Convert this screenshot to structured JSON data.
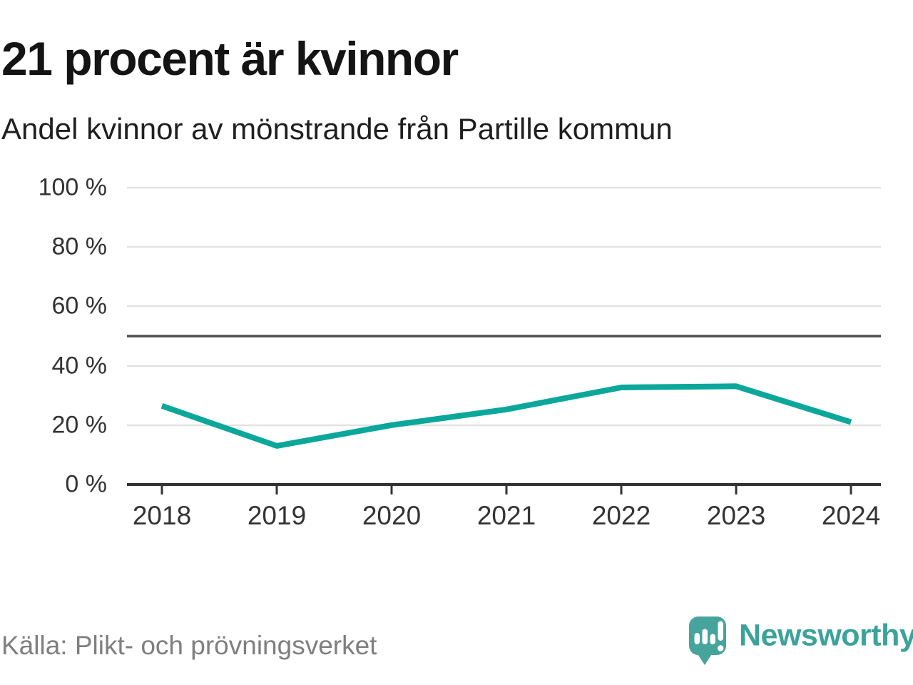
{
  "header": {
    "title": "21 procent är kvinnor",
    "subtitle": "Andel kvinnor av mönstrande från Partille kommun"
  },
  "chart_data": {
    "type": "line",
    "title": "21 procent är kvinnor",
    "subtitle": "Andel kvinnor av mönstrande från Partille kommun",
    "x": [
      "2018",
      "2019",
      "2020",
      "2021",
      "2022",
      "2023",
      "2024"
    ],
    "series": [
      {
        "name": "Andel kvinnor",
        "color": "#0ba79b",
        "values": [
          26.5,
          13,
          20,
          25.3,
          32.7,
          33.1,
          21
        ]
      }
    ],
    "unit": "%",
    "ylim": [
      0,
      100
    ],
    "ytick_labels": [
      "100 %",
      "80 %",
      "60 %",
      "40 %",
      "20 %",
      "0 %"
    ],
    "ytick_values": [
      100,
      80,
      60,
      40,
      20,
      0
    ],
    "reference_line": {
      "value": 50,
      "color": "#4d4d4d"
    },
    "grid": "horizontal",
    "legend": "none",
    "xlabel": "",
    "ylabel": ""
  },
  "footer": {
    "source": "Källa: Plikt- och prövningsverket",
    "brand_name": "Newsworthy"
  },
  "colors": {
    "line": "#0ba79b",
    "gridline": "#e2e2e2",
    "reference_line": "#4d4d4d",
    "axis": "#333333",
    "logo_mark": "#46a49c",
    "logo_text": "#3ba39a",
    "source_text": "#7f7f7f",
    "title_text": "#141414"
  }
}
